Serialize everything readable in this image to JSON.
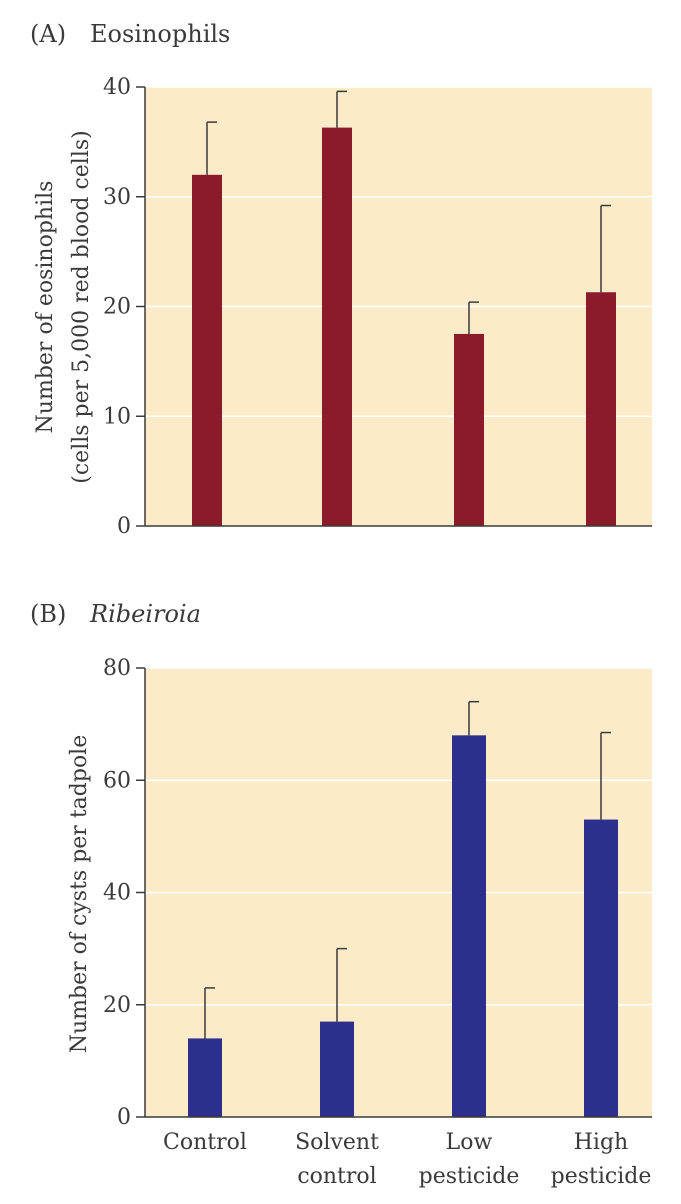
{
  "colors": {
    "panel_bg": "#fcebc9",
    "gridline": "#ffffff",
    "axis": "#3a3a3a",
    "bar_a": "#8b1a2b",
    "bar_b": "#2c2f8c",
    "text": "#3a3a3a"
  },
  "chart_data": [
    {
      "type": "bar",
      "panel_tag": "(A)",
      "title": "Eosinophils",
      "title_italic": false,
      "ylabel_lines": [
        "Number of eosinophils",
        "(cells per 5,000 red blood cells)"
      ],
      "xlabel": "",
      "categories": [
        "Control",
        "Solvent control",
        "Low pesticide",
        "High pesticide"
      ],
      "values": [
        32,
        36.3,
        17.5,
        21.3
      ],
      "error_upper": [
        36.8,
        39.6,
        20.4,
        29.2
      ],
      "ylim": [
        0,
        40
      ],
      "yticks": [
        "0",
        "10",
        "20",
        "30",
        "40"
      ],
      "grid": true
    },
    {
      "type": "bar",
      "panel_tag": "(B)",
      "title": "Ribeiroia",
      "title_italic": true,
      "ylabel_lines": [
        "Number of cysts per tadpole"
      ],
      "xlabel": "",
      "categories": [
        "Control",
        "Solvent control",
        "Low pesticide",
        "High pesticide"
      ],
      "category_label_lines": [
        [
          "Control"
        ],
        [
          "Solvent",
          "control"
        ],
        [
          "Low",
          "pesticide"
        ],
        [
          "High",
          "pesticide"
        ]
      ],
      "values": [
        14,
        17,
        68,
        53
      ],
      "error_upper": [
        23,
        30,
        74,
        68.5
      ],
      "ylim": [
        0,
        80
      ],
      "yticks": [
        "0",
        "20",
        "40",
        "60",
        "80"
      ],
      "grid": true
    }
  ]
}
